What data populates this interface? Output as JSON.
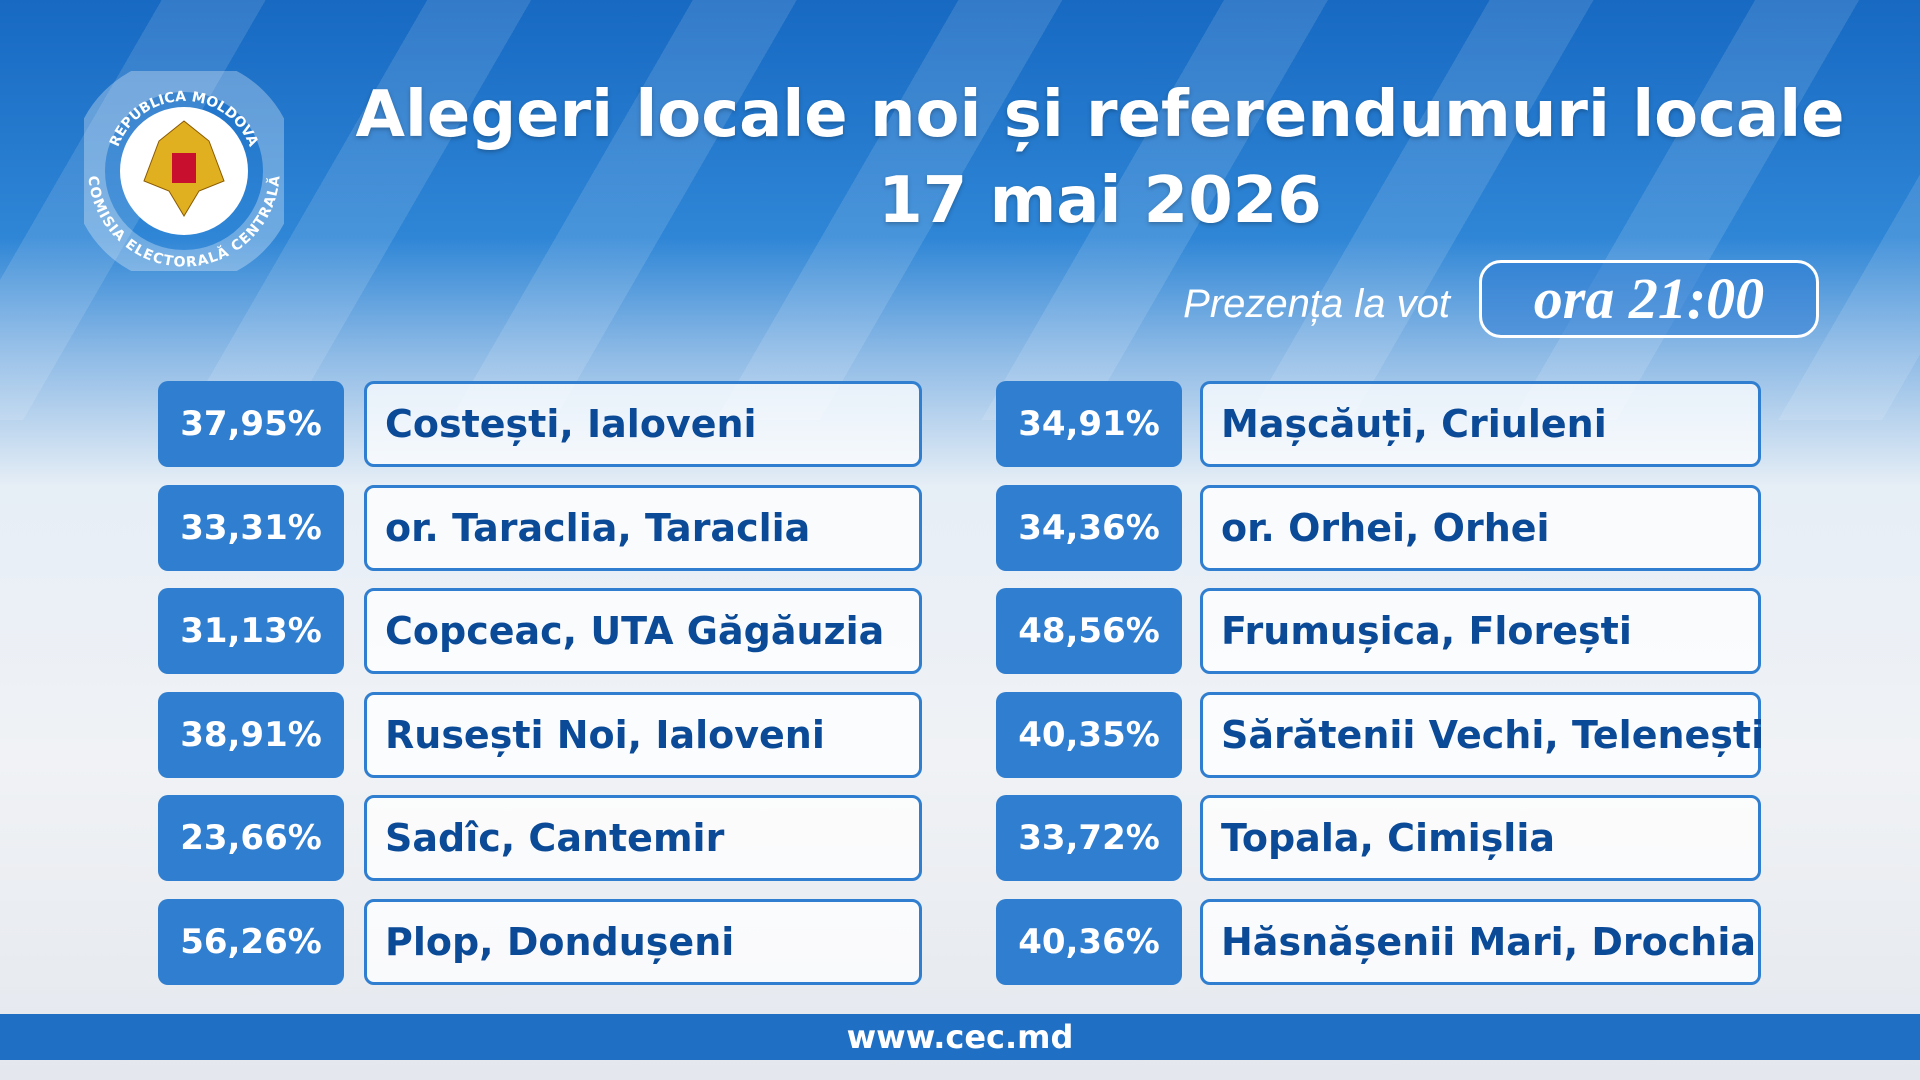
{
  "header": {
    "logo_top": "REPUBLICA MOLDOVA",
    "logo_bottom": "COMISIA ELECTORALĂ CENTRALĂ",
    "title_line1": "Alegeri locale noi și referendumuri locale",
    "title_line2": "17 mai 2026",
    "subtitle": "Prezența la vot",
    "time": "ora 21:00"
  },
  "table": {
    "left": [
      {
        "percent": "37,95%",
        "place": "Costești, Ialoveni"
      },
      {
        "percent": "33,31%",
        "place": "or. Taraclia, Taraclia"
      },
      {
        "percent": "31,13%",
        "place": "Copceac, UTA Găgăuzia"
      },
      {
        "percent": "38,91%",
        "place": "Rusești Noi, Ialoveni"
      },
      {
        "percent": "23,66%",
        "place": "Sadîc, Cantemir"
      },
      {
        "percent": "56,26%",
        "place": "Plop, Dondușeni"
      }
    ],
    "right": [
      {
        "percent": "34,91%",
        "place": "Mașcăuți, Criuleni"
      },
      {
        "percent": "34,36%",
        "place": "or. Orhei, Orhei"
      },
      {
        "percent": "48,56%",
        "place": "Frumușica, Florești"
      },
      {
        "percent": "40,35%",
        "place": "Sărătenii Vechi, Telenești"
      },
      {
        "percent": "33,72%",
        "place": "Topala, Cimișlia"
      },
      {
        "percent": "40,36%",
        "place": "Hăsnășenii Mari, Drochia"
      }
    ]
  },
  "footer": {
    "url": "www.cec.md"
  }
}
